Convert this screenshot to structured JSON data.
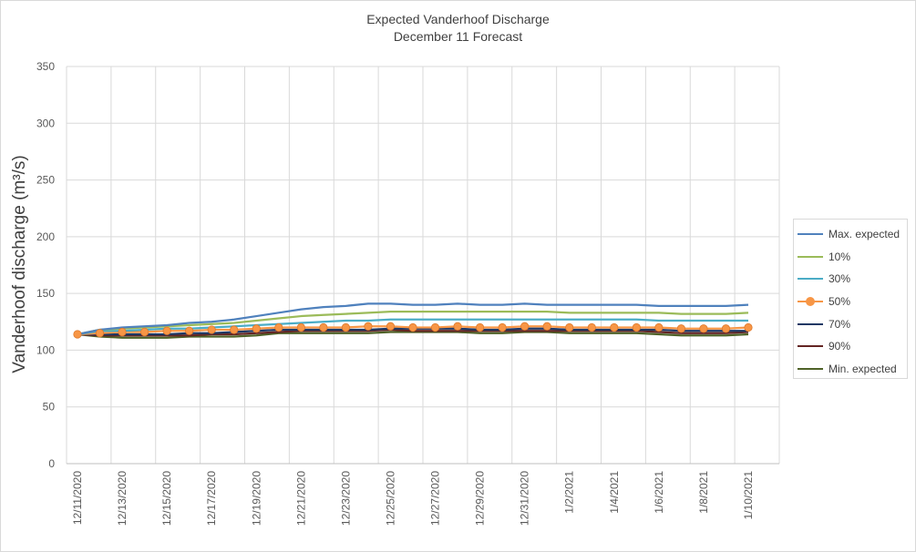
{
  "chart_data": {
    "type": "line",
    "title": "Expected Vanderhoof Discharge",
    "subtitle": "December 11 Forecast",
    "xlabel": "",
    "ylabel": "Vanderhoof discharge (m³/s)",
    "ylim": [
      0,
      350
    ],
    "yticks": [
      0,
      50,
      100,
      150,
      200,
      250,
      300,
      350
    ],
    "grid": true,
    "legend_position": "right",
    "x": [
      "12/11/2020",
      "12/12/2020",
      "12/13/2020",
      "12/14/2020",
      "12/15/2020",
      "12/16/2020",
      "12/17/2020",
      "12/18/2020",
      "12/19/2020",
      "12/20/2020",
      "12/21/2020",
      "12/22/2020",
      "12/23/2020",
      "12/24/2020",
      "12/25/2020",
      "12/26/2020",
      "12/27/2020",
      "12/28/2020",
      "12/29/2020",
      "12/30/2020",
      "12/31/2020",
      "1/1/2021",
      "1/2/2021",
      "1/3/2021",
      "1/4/2021",
      "1/5/2021",
      "1/6/2021",
      "1/7/2021",
      "1/8/2021",
      "1/9/2021",
      "1/10/2021"
    ],
    "x_tick_labels": [
      "12/11/2020",
      "12/13/2020",
      "12/15/2020",
      "12/17/2020",
      "12/19/2020",
      "12/21/2020",
      "12/23/2020",
      "12/25/2020",
      "12/27/2020",
      "12/29/2020",
      "12/31/2020",
      "1/2/2021",
      "1/4/2021",
      "1/6/2021",
      "1/8/2021",
      "1/10/2021"
    ],
    "series": [
      {
        "name": "Max. expected",
        "color": "#4f81bd",
        "marker": false,
        "values": [
          114,
          118,
          120,
          121,
          122,
          124,
          125,
          127,
          130,
          133,
          136,
          138,
          139,
          141,
          141,
          140,
          140,
          141,
          140,
          140,
          141,
          140,
          140,
          140,
          140,
          140,
          139,
          139,
          139,
          139,
          140
        ]
      },
      {
        "name": "10%",
        "color": "#9bbb59",
        "marker": false,
        "values": [
          114,
          118,
          119,
          120,
          121,
          122,
          123,
          124,
          126,
          128,
          130,
          131,
          132,
          133,
          134,
          134,
          134,
          134,
          134,
          134,
          134,
          134,
          133,
          133,
          133,
          133,
          133,
          132,
          132,
          132,
          133
        ]
      },
      {
        "name": "30%",
        "color": "#4bacc6",
        "marker": false,
        "values": [
          114,
          117,
          117,
          118,
          119,
          119,
          120,
          121,
          122,
          123,
          124,
          125,
          126,
          126,
          127,
          127,
          127,
          127,
          127,
          127,
          127,
          127,
          127,
          127,
          127,
          127,
          126,
          126,
          126,
          126,
          126
        ]
      },
      {
        "name": "50%",
        "color": "#f79646",
        "marker": true,
        "values": [
          114,
          115,
          116,
          116,
          117,
          117,
          118,
          118,
          119,
          120,
          120,
          120,
          120,
          121,
          121,
          120,
          120,
          121,
          120,
          120,
          121,
          121,
          120,
          120,
          120,
          120,
          120,
          119,
          119,
          119,
          120
        ]
      },
      {
        "name": "70%",
        "color": "#1f3864",
        "marker": false,
        "values": [
          114,
          114,
          114,
          114,
          114,
          115,
          115,
          116,
          117,
          118,
          118,
          118,
          118,
          118,
          119,
          119,
          119,
          119,
          118,
          118,
          119,
          119,
          118,
          118,
          118,
          118,
          118,
          117,
          117,
          117,
          117
        ]
      },
      {
        "name": "90%",
        "color": "#632523",
        "marker": false,
        "values": [
          114,
          113,
          113,
          113,
          113,
          113,
          114,
          114,
          115,
          116,
          117,
          117,
          117,
          117,
          118,
          117,
          117,
          117,
          117,
          117,
          117,
          117,
          117,
          117,
          117,
          117,
          116,
          115,
          115,
          115,
          116
        ]
      },
      {
        "name": "Min. expected",
        "color": "#4f6228",
        "marker": false,
        "values": [
          114,
          112,
          111,
          111,
          111,
          112,
          112,
          112,
          113,
          115,
          115,
          115,
          115,
          115,
          116,
          116,
          116,
          116,
          115,
          115,
          116,
          116,
          115,
          115,
          115,
          115,
          114,
          113,
          113,
          113,
          114
        ]
      }
    ]
  }
}
